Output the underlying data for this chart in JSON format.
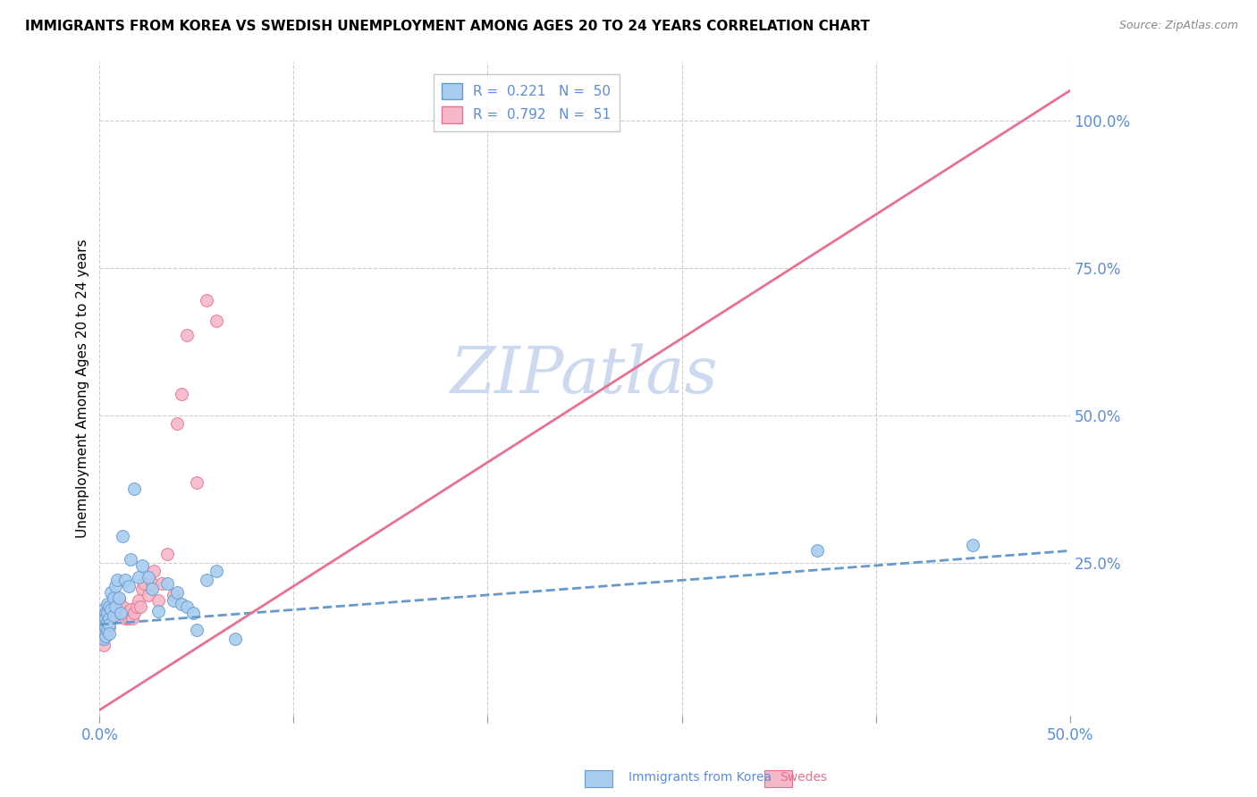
{
  "title": "IMMIGRANTS FROM KOREA VS SWEDISH UNEMPLOYMENT AMONG AGES 20 TO 24 YEARS CORRELATION CHART",
  "source": "Source: ZipAtlas.com",
  "ylabel_left": "Unemployment Among Ages 20 to 24 years",
  "right_ytick_labels": [
    "100.0%",
    "75.0%",
    "50.0%",
    "25.0%"
  ],
  "right_ytick_values": [
    1.0,
    0.75,
    0.5,
    0.25
  ],
  "watermark": "ZIPatlas",
  "legend_label_korea": "R =  0.221   N =  50",
  "legend_label_swedes": "R =  0.792   N =  51",
  "korea_scatter_x": [
    0.001,
    0.001,
    0.001,
    0.002,
    0.002,
    0.002,
    0.002,
    0.003,
    0.003,
    0.003,
    0.003,
    0.004,
    0.004,
    0.004,
    0.004,
    0.005,
    0.005,
    0.005,
    0.005,
    0.006,
    0.006,
    0.007,
    0.007,
    0.008,
    0.008,
    0.009,
    0.01,
    0.011,
    0.012,
    0.013,
    0.015,
    0.016,
    0.018,
    0.02,
    0.022,
    0.025,
    0.027,
    0.03,
    0.035,
    0.038,
    0.04,
    0.042,
    0.045,
    0.048,
    0.05,
    0.055,
    0.06,
    0.07,
    0.37,
    0.45
  ],
  "korea_scatter_y": [
    0.155,
    0.145,
    0.135,
    0.17,
    0.155,
    0.145,
    0.12,
    0.165,
    0.155,
    0.14,
    0.125,
    0.18,
    0.165,
    0.15,
    0.135,
    0.175,
    0.155,
    0.145,
    0.13,
    0.2,
    0.17,
    0.19,
    0.16,
    0.21,
    0.175,
    0.22,
    0.19,
    0.165,
    0.295,
    0.22,
    0.21,
    0.255,
    0.375,
    0.225,
    0.245,
    0.225,
    0.205,
    0.168,
    0.215,
    0.185,
    0.2,
    0.18,
    0.175,
    0.165,
    0.135,
    0.22,
    0.235,
    0.12,
    0.27,
    0.28
  ],
  "swedes_scatter_x": [
    0.001,
    0.001,
    0.001,
    0.002,
    0.002,
    0.002,
    0.002,
    0.003,
    0.003,
    0.003,
    0.004,
    0.004,
    0.004,
    0.005,
    0.005,
    0.005,
    0.006,
    0.006,
    0.007,
    0.007,
    0.008,
    0.008,
    0.009,
    0.01,
    0.01,
    0.011,
    0.012,
    0.013,
    0.014,
    0.015,
    0.016,
    0.017,
    0.018,
    0.019,
    0.02,
    0.021,
    0.022,
    0.023,
    0.025,
    0.027,
    0.028,
    0.03,
    0.032,
    0.035,
    0.038,
    0.04,
    0.042,
    0.045,
    0.05,
    0.055,
    0.06
  ],
  "swedes_scatter_y": [
    0.13,
    0.15,
    0.12,
    0.155,
    0.14,
    0.125,
    0.11,
    0.16,
    0.145,
    0.13,
    0.165,
    0.15,
    0.135,
    0.17,
    0.155,
    0.14,
    0.175,
    0.155,
    0.18,
    0.16,
    0.19,
    0.165,
    0.175,
    0.185,
    0.165,
    0.17,
    0.175,
    0.155,
    0.165,
    0.155,
    0.17,
    0.155,
    0.165,
    0.175,
    0.185,
    0.175,
    0.205,
    0.215,
    0.195,
    0.215,
    0.235,
    0.185,
    0.215,
    0.265,
    0.195,
    0.485,
    0.535,
    0.635,
    0.385,
    0.695,
    0.66
  ],
  "korea_line_x": [
    0.0,
    0.5
  ],
  "korea_line_y": [
    0.145,
    0.27
  ],
  "swedes_line_x": [
    0.0,
    0.5
  ],
  "swedes_line_y": [
    0.0,
    1.05
  ],
  "xlim": [
    0.0,
    0.5
  ],
  "ylim": [
    -0.01,
    1.1
  ],
  "background_color": "#ffffff",
  "scatter_size": 100,
  "korea_color": "#a8cdf0",
  "korea_edge_color": "#6699cc",
  "swedes_color": "#f5b8c8",
  "swedes_edge_color": "#e87090",
  "title_fontsize": 11,
  "source_fontsize": 9,
  "watermark_fontsize": 52,
  "watermark_color": "#cdd9ee",
  "grid_color": "#cccccc",
  "axis_color": "#5b8dd9",
  "legend_fontsize": 11
}
